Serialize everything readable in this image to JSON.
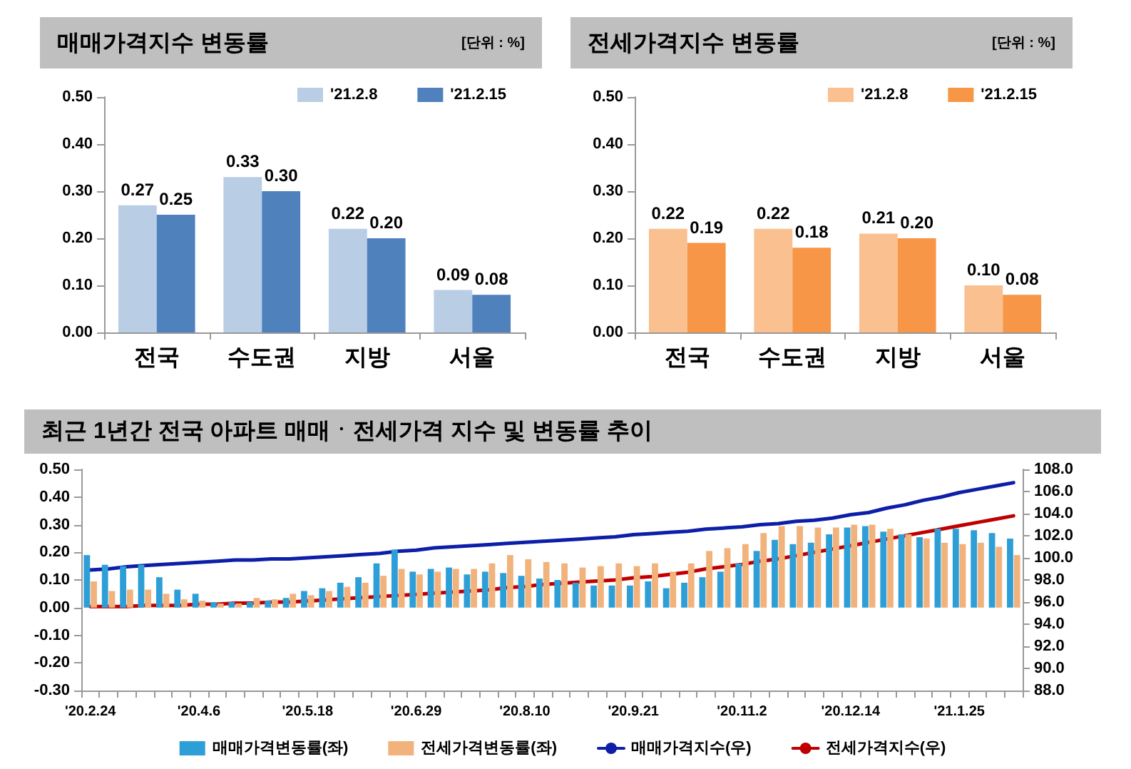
{
  "chart_data": [
    {
      "type": "bar",
      "title": "매매가격지수 변동률",
      "annotations": [
        "[단위 : %]"
      ],
      "categories": [
        "전국",
        "수도권",
        "지방",
        "서울"
      ],
      "series": [
        {
          "name": "'21.2.8",
          "color": "#b9cde5",
          "values": [
            0.27,
            0.33,
            0.22,
            0.09
          ],
          "value_labels": [
            "0.27",
            "0.33",
            "0.22",
            "0.09"
          ]
        },
        {
          "name": "'21.2.15",
          "color": "#4f81bd",
          "values": [
            0.25,
            0.3,
            0.2,
            0.08
          ],
          "value_labels": [
            "0.25",
            "0.30",
            "0.20",
            "0.08"
          ]
        }
      ],
      "ylim": [
        0,
        0.5
      ],
      "yticks": [
        {
          "value": 0,
          "label": "0.00"
        },
        {
          "value": 0.1,
          "label": "0.10"
        },
        {
          "value": 0.2,
          "label": "0.20"
        },
        {
          "value": 0.3,
          "label": "0.30"
        },
        {
          "value": 0.4,
          "label": "0.40"
        },
        {
          "value": 0.5,
          "label": "0.50"
        }
      ],
      "legend": "top right"
    },
    {
      "type": "bar",
      "title": "전세가격지수 변동률",
      "annotations": [
        "[단위 : %]"
      ],
      "categories": [
        "전국",
        "수도권",
        "지방",
        "서울"
      ],
      "series": [
        {
          "name": "'21.2.8",
          "color": "#fac090",
          "values": [
            0.22,
            0.22,
            0.21,
            0.1
          ],
          "value_labels": [
            "0.22",
            "0.22",
            "0.21",
            "0.10"
          ]
        },
        {
          "name": "'21.2.15",
          "color": "#f79646",
          "values": [
            0.19,
            0.18,
            0.2,
            0.08
          ],
          "value_labels": [
            "0.19",
            "0.18",
            "0.20",
            "0.08"
          ]
        }
      ],
      "ylim": [
        0,
        0.5
      ],
      "yticks": [
        {
          "value": 0,
          "label": "0.00"
        },
        {
          "value": 0.1,
          "label": "0.10"
        },
        {
          "value": 0.2,
          "label": "0.20"
        },
        {
          "value": 0.3,
          "label": "0.30"
        },
        {
          "value": 0.4,
          "label": "0.40"
        },
        {
          "value": 0.5,
          "label": "0.50"
        }
      ],
      "legend": "top right"
    },
    {
      "type": "bar",
      "title": "최근 1년간 전국 아파트 매매ㆍ전세가격 지수 및 변동률 추이",
      "categories": [
        "'20.2.24",
        null,
        null,
        null,
        null,
        null,
        "'20.4.6",
        null,
        null,
        null,
        null,
        null,
        "'20.5.18",
        null,
        null,
        null,
        null,
        null,
        "'20.6.29",
        null,
        null,
        null,
        null,
        null,
        "'20.8.10",
        null,
        null,
        null,
        null,
        null,
        "'20.9.21",
        null,
        null,
        null,
        null,
        null,
        "'20.11.2",
        null,
        null,
        null,
        null,
        null,
        "'20.12.14",
        null,
        null,
        null,
        null,
        null,
        "'21.1.25",
        null,
        null,
        null
      ],
      "series": [
        {
          "name": "매매가격변동률(좌)",
          "color": "#2e9fd6",
          "values": [
            0.19,
            0.155,
            0.15,
            0.155,
            0.11,
            0.065,
            0.05,
            0.02,
            0.02,
            0.02,
            0.025,
            0.035,
            0.06,
            0.07,
            0.09,
            0.11,
            0.16,
            0.21,
            0.13,
            0.14,
            0.145,
            0.12,
            0.13,
            0.125,
            0.115,
            0.105,
            0.1,
            0.09,
            0.08,
            0.08,
            0.08,
            0.095,
            0.07,
            0.09,
            0.11,
            0.13,
            0.16,
            0.205,
            0.245,
            0.23,
            0.235,
            0.265,
            0.29,
            0.295,
            0.275,
            0.265,
            0.255,
            0.285,
            0.285,
            0.28,
            0.27,
            0.25
          ]
        },
        {
          "name": "전세가격변동률(좌)",
          "color": "#f2b27c",
          "values": [
            0.095,
            0.06,
            0.065,
            0.065,
            0.05,
            0.03,
            0.025,
            0.015,
            0.015,
            0.035,
            0.03,
            0.05,
            0.045,
            0.06,
            0.075,
            0.09,
            0.115,
            0.14,
            0.12,
            0.13,
            0.14,
            0.14,
            0.16,
            0.19,
            0.175,
            0.165,
            0.16,
            0.145,
            0.15,
            0.16,
            0.15,
            0.16,
            0.13,
            0.16,
            0.205,
            0.215,
            0.23,
            0.27,
            0.295,
            0.295,
            0.29,
            0.29,
            0.3,
            0.3,
            0.285,
            0.265,
            0.25,
            0.235,
            0.23,
            0.235,
            0.22,
            0.19
          ]
        },
        {
          "name": "매매가격지수(우)",
          "type": "line",
          "axis": "y2",
          "color": "#0d1fa8",
          "values": [
            98.9,
            99.0,
            99.2,
            99.3,
            99.4,
            99.5,
            99.6,
            99.7,
            99.8,
            99.8,
            99.9,
            99.9,
            100.0,
            100.1,
            100.2,
            100.3,
            100.4,
            100.6,
            100.7,
            100.9,
            101.0,
            101.1,
            101.2,
            101.3,
            101.4,
            101.5,
            101.6,
            101.7,
            101.8,
            101.9,
            102.1,
            102.2,
            102.3,
            102.4,
            102.6,
            102.7,
            102.8,
            103.0,
            103.1,
            103.3,
            103.4,
            103.6,
            103.9,
            104.1,
            104.5,
            104.8,
            105.2,
            105.5,
            105.9,
            106.2,
            106.5,
            106.8
          ]
        },
        {
          "name": "전세가격지수(우)",
          "type": "line",
          "axis": "y2",
          "color": "#c00000",
          "values": [
            95.6,
            95.6,
            95.6,
            95.7,
            95.7,
            95.7,
            95.8,
            95.8,
            95.9,
            95.9,
            96.0,
            96.0,
            96.1,
            96.2,
            96.3,
            96.4,
            96.5,
            96.6,
            96.7,
            96.8,
            96.9,
            97.0,
            97.1,
            97.3,
            97.4,
            97.6,
            97.7,
            97.8,
            97.9,
            98.0,
            98.2,
            98.3,
            98.5,
            98.7,
            99.0,
            99.2,
            99.4,
            99.7,
            99.9,
            100.2,
            100.5,
            100.8,
            101.1,
            101.4,
            101.7,
            102.0,
            102.3,
            102.6,
            102.9,
            103.2,
            103.5,
            103.8
          ]
        }
      ],
      "ylim": [
        -0.3,
        0.5
      ],
      "yticks": [
        {
          "value": -0.3,
          "label": "-0.30"
        },
        {
          "value": -0.2,
          "label": "-0.20"
        },
        {
          "value": -0.1,
          "label": "-0.10"
        },
        {
          "value": 0,
          "label": "0.00"
        },
        {
          "value": 0.1,
          "label": "0.10"
        },
        {
          "value": 0.2,
          "label": "0.20"
        },
        {
          "value": 0.3,
          "label": "0.30"
        },
        {
          "value": 0.4,
          "label": "0.40"
        },
        {
          "value": 0.5,
          "label": "0.50"
        }
      ],
      "y2lim": [
        88,
        108
      ],
      "y2ticks": [
        {
          "value": 88,
          "label": "88.0"
        },
        {
          "value": 90,
          "label": "90.0"
        },
        {
          "value": 92,
          "label": "92.0"
        },
        {
          "value": 94,
          "label": "94.0"
        },
        {
          "value": 96,
          "label": "96.0"
        },
        {
          "value": 98,
          "label": "98.0"
        },
        {
          "value": 100,
          "label": "100.0"
        },
        {
          "value": 102,
          "label": "102.0"
        },
        {
          "value": 104,
          "label": "104.0"
        },
        {
          "value": 106,
          "label": "106.0"
        },
        {
          "value": 108,
          "label": "108.0"
        }
      ],
      "marker": "none",
      "legend": "bottom"
    }
  ]
}
